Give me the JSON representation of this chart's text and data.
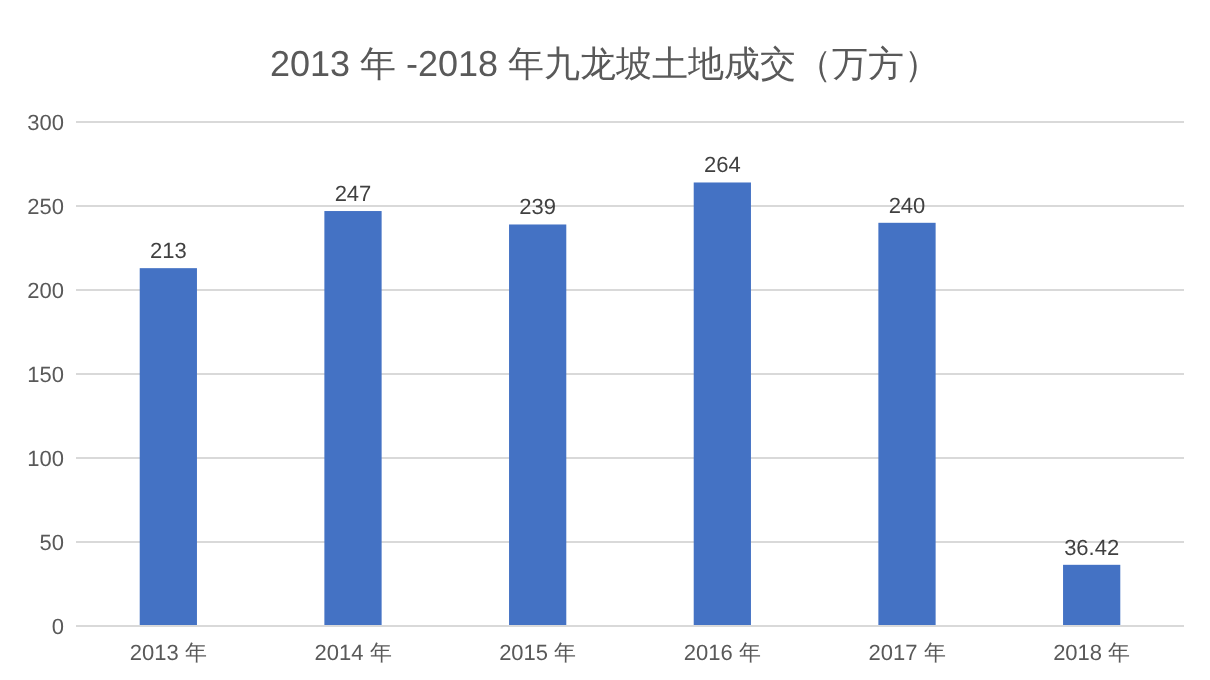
{
  "chart_data": {
    "type": "bar",
    "title": "2013 年 -2018 年九龙坡土地成交（万方）",
    "categories": [
      "2013 年",
      "2014 年",
      "2015 年",
      "2016 年",
      "2017 年",
      "2018 年"
    ],
    "values": [
      213,
      247,
      239,
      264,
      240,
      36.42
    ],
    "color": "#4472c4",
    "ylim": [
      0,
      300
    ],
    "yticks": [
      0,
      50,
      100,
      150,
      200,
      250,
      300
    ],
    "grid": "y",
    "data_labels": true
  }
}
